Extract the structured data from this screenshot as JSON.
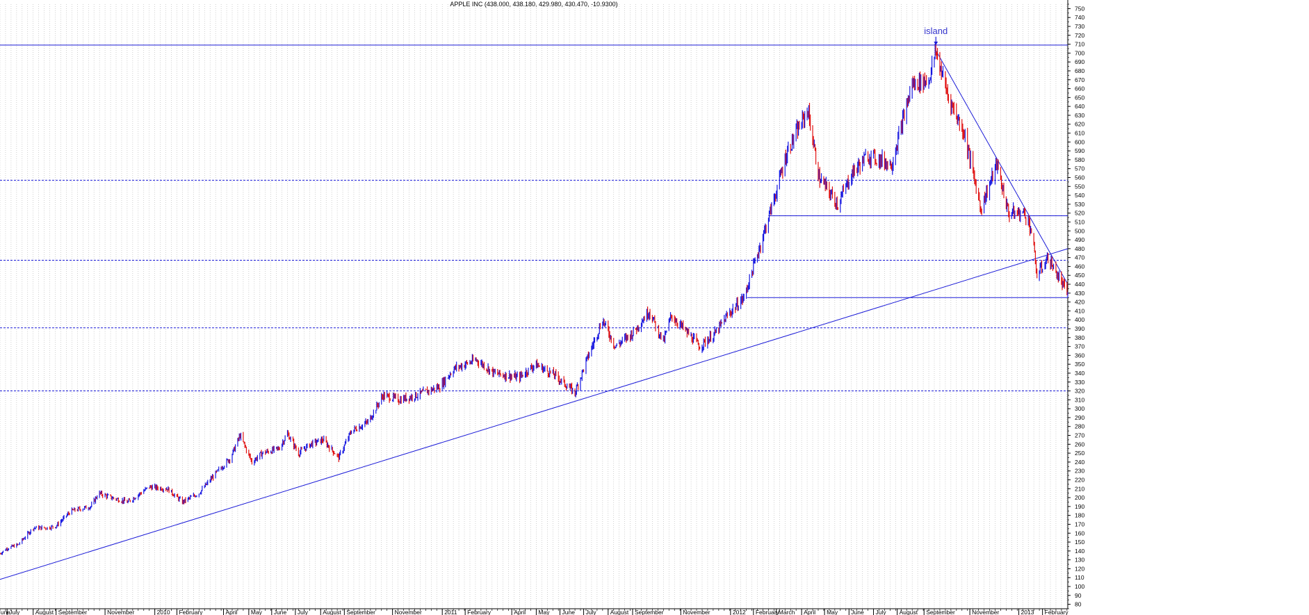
{
  "chart_data": {
    "type": "candlestick",
    "title": "APPLE INC (438.000, 438.180, 429.980, 430.470, -10.9300)",
    "ylim": [
      75,
      755
    ],
    "y_ticks": [
      80,
      90,
      100,
      110,
      120,
      130,
      140,
      150,
      160,
      170,
      180,
      190,
      200,
      210,
      220,
      230,
      240,
      250,
      260,
      270,
      280,
      290,
      300,
      310,
      320,
      330,
      340,
      350,
      360,
      370,
      380,
      390,
      400,
      410,
      420,
      430,
      440,
      450,
      460,
      470,
      480,
      490,
      500,
      510,
      520,
      530,
      540,
      550,
      560,
      570,
      580,
      590,
      600,
      610,
      620,
      630,
      640,
      650,
      660,
      670,
      680,
      690,
      700,
      710,
      720,
      730,
      740,
      750
    ],
    "x_range": [
      "2009-06-22",
      "2013-03-05"
    ],
    "x_tick_labels": [
      {
        "label": "une",
        "date": "2009-06-20"
      },
      {
        "label": "July",
        "date": "2009-07-01"
      },
      {
        "label": "August",
        "date": "2009-08-03"
      },
      {
        "label": "September",
        "date": "2009-09-01"
      },
      {
        "label": "November",
        "date": "2009-11-02"
      },
      {
        "label": "2010",
        "date": "2010-01-04"
      },
      {
        "label": "February",
        "date": "2010-02-01"
      },
      {
        "label": "April",
        "date": "2010-04-01"
      },
      {
        "label": "May",
        "date": "2010-05-03"
      },
      {
        "label": "June",
        "date": "2010-06-01"
      },
      {
        "label": "July",
        "date": "2010-07-01"
      },
      {
        "label": "August",
        "date": "2010-08-02"
      },
      {
        "label": "September",
        "date": "2010-09-01"
      },
      {
        "label": "November",
        "date": "2010-11-01"
      },
      {
        "label": "2011",
        "date": "2011-01-03"
      },
      {
        "label": "February",
        "date": "2011-02-01"
      },
      {
        "label": "April",
        "date": "2011-04-01"
      },
      {
        "label": "May",
        "date": "2011-05-02"
      },
      {
        "label": "June",
        "date": "2011-06-01"
      },
      {
        "label": "July",
        "date": "2011-07-01"
      },
      {
        "label": "August",
        "date": "2011-08-01"
      },
      {
        "label": "September",
        "date": "2011-09-01"
      },
      {
        "label": "November",
        "date": "2011-11-01"
      },
      {
        "label": "2012",
        "date": "2012-01-03"
      },
      {
        "label": "February",
        "date": "2012-02-01"
      },
      {
        "label": "March",
        "date": "2012-03-01"
      },
      {
        "label": "April",
        "date": "2012-04-02"
      },
      {
        "label": "May",
        "date": "2012-05-01"
      },
      {
        "label": "June",
        "date": "2012-06-01"
      },
      {
        "label": "July",
        "date": "2012-07-02"
      },
      {
        "label": "August",
        "date": "2012-08-01"
      },
      {
        "label": "September",
        "date": "2012-09-04"
      },
      {
        "label": "November",
        "date": "2012-11-01"
      },
      {
        "label": "2013",
        "date": "2013-01-02"
      },
      {
        "label": "February",
        "date": "2013-02-01"
      }
    ],
    "series": [
      {
        "values": [
          {
            "date": "2009-06-22",
            "close": 137
          },
          {
            "date": "2009-07-01",
            "close": 143
          },
          {
            "date": "2009-07-15",
            "close": 147
          },
          {
            "date": "2009-08-03",
            "close": 166
          },
          {
            "date": "2009-08-20",
            "close": 166
          },
          {
            "date": "2009-09-01",
            "close": 168
          },
          {
            "date": "2009-09-20",
            "close": 185
          },
          {
            "date": "2009-10-15",
            "close": 190
          },
          {
            "date": "2009-10-25",
            "close": 205
          },
          {
            "date": "2009-11-10",
            "close": 200
          },
          {
            "date": "2009-12-01",
            "close": 195
          },
          {
            "date": "2009-12-28",
            "close": 212
          },
          {
            "date": "2010-01-20",
            "close": 210
          },
          {
            "date": "2010-02-08",
            "close": 195
          },
          {
            "date": "2010-03-01",
            "close": 205
          },
          {
            "date": "2010-03-20",
            "close": 225
          },
          {
            "date": "2010-04-10",
            "close": 245
          },
          {
            "date": "2010-04-22",
            "close": 270
          },
          {
            "date": "2010-05-07",
            "close": 240
          },
          {
            "date": "2010-05-20",
            "close": 250
          },
          {
            "date": "2010-06-10",
            "close": 255
          },
          {
            "date": "2010-06-21",
            "close": 272
          },
          {
            "date": "2010-07-05",
            "close": 250
          },
          {
            "date": "2010-07-20",
            "close": 260
          },
          {
            "date": "2010-08-05",
            "close": 265
          },
          {
            "date": "2010-08-25",
            "close": 245
          },
          {
            "date": "2010-09-10",
            "close": 275
          },
          {
            "date": "2010-10-01",
            "close": 285
          },
          {
            "date": "2010-10-20",
            "close": 315
          },
          {
            "date": "2010-11-10",
            "close": 310
          },
          {
            "date": "2010-12-01",
            "close": 315
          },
          {
            "date": "2010-12-31",
            "close": 325
          },
          {
            "date": "2011-01-18",
            "close": 345
          },
          {
            "date": "2011-02-15",
            "close": 355
          },
          {
            "date": "2011-03-10",
            "close": 340
          },
          {
            "date": "2011-04-10",
            "close": 335
          },
          {
            "date": "2011-05-01",
            "close": 350
          },
          {
            "date": "2011-05-25",
            "close": 338
          },
          {
            "date": "2011-06-20",
            "close": 318
          },
          {
            "date": "2011-07-05",
            "close": 355
          },
          {
            "date": "2011-07-25",
            "close": 400
          },
          {
            "date": "2011-08-10",
            "close": 370
          },
          {
            "date": "2011-09-01",
            "close": 385
          },
          {
            "date": "2011-09-22",
            "close": 410
          },
          {
            "date": "2011-10-10",
            "close": 375
          },
          {
            "date": "2011-10-20",
            "close": 405
          },
          {
            "date": "2011-11-25",
            "close": 370
          },
          {
            "date": "2011-12-15",
            "close": 385
          },
          {
            "date": "2011-12-30",
            "close": 405
          },
          {
            "date": "2012-01-20",
            "close": 425
          },
          {
            "date": "2012-01-27",
            "close": 445
          },
          {
            "date": "2012-02-15",
            "close": 500
          },
          {
            "date": "2012-03-01",
            "close": 545
          },
          {
            "date": "2012-03-15",
            "close": 590
          },
          {
            "date": "2012-04-10",
            "close": 636
          },
          {
            "date": "2012-04-24",
            "close": 560
          },
          {
            "date": "2012-05-18",
            "close": 530
          },
          {
            "date": "2012-06-05",
            "close": 565
          },
          {
            "date": "2012-06-25",
            "close": 585
          },
          {
            "date": "2012-07-25",
            "close": 575
          },
          {
            "date": "2012-08-20",
            "close": 665
          },
          {
            "date": "2012-09-10",
            "close": 670
          },
          {
            "date": "2012-09-19",
            "close": 702
          },
          {
            "date": "2012-10-05",
            "close": 650
          },
          {
            "date": "2012-10-25",
            "close": 610
          },
          {
            "date": "2012-11-15",
            "close": 525
          },
          {
            "date": "2012-12-05",
            "close": 575
          },
          {
            "date": "2012-12-20",
            "close": 520
          },
          {
            "date": "2013-01-10",
            "close": 520
          },
          {
            "date": "2013-01-18",
            "close": 500
          },
          {
            "date": "2013-01-25",
            "close": 450
          },
          {
            "date": "2013-02-08",
            "close": 470
          },
          {
            "date": "2013-02-20",
            "close": 450
          },
          {
            "date": "2013-03-04",
            "close": 430
          }
        ]
      }
    ],
    "horizontal_lines": [
      {
        "value": 709,
        "style": "solid"
      },
      {
        "value": 557,
        "style": "dashed"
      },
      {
        "value": 517,
        "style": "solid",
        "start_date": "2012-02-20"
      },
      {
        "value": 467,
        "style": "dashed"
      },
      {
        "value": 425,
        "style": "solid",
        "start_date": "2012-01-24"
      },
      {
        "value": 391,
        "style": "dashed"
      },
      {
        "value": 320,
        "style": "dashed"
      }
    ],
    "trend_lines": [
      {
        "from": {
          "date": "2009-06-22",
          "value": 108
        },
        "to": {
          "date": "2013-03-05",
          "value": 480
        }
      },
      {
        "from": {
          "date": "2012-09-19",
          "value": 703
        },
        "to": {
          "date": "2013-03-05",
          "value": 440
        }
      }
    ],
    "annotations": [
      {
        "text": "island",
        "date": "2012-09-19",
        "value": 709
      }
    ],
    "colors": {
      "up": "#1515e0",
      "down": "#e01010",
      "line": "#1a1ad8",
      "grid": "#b0b0b0"
    },
    "grid": true
  }
}
